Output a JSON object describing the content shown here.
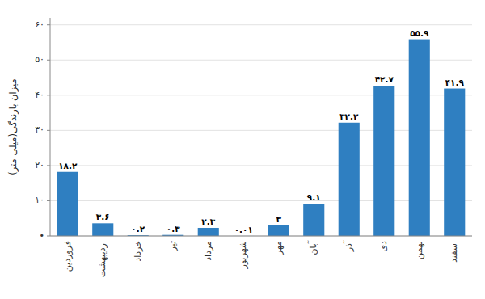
{
  "chart_data": {
    "type": "bar",
    "categories": [
      "فروردین",
      "اردیبهشت",
      "خرداد",
      "تیر",
      "مرداد",
      "شهریور",
      "مهر",
      "آبان",
      "آذر",
      "دی",
      "بهمن",
      "اسفند"
    ],
    "values": [
      18.2,
      3.6,
      0.2,
      0.3,
      2.3,
      0.01,
      3.0,
      9.1,
      32.2,
      42.7,
      55.9,
      41.9
    ],
    "value_labels": [
      "۱۸.۲",
      "۳.۶",
      "۰.۲",
      "۰.۳",
      "۲.۳",
      "۰.۰۱",
      "۳",
      "۹.۱",
      "۳۲.۲",
      "۴۲.۷",
      "۵۵.۹",
      "۴۱.۹"
    ],
    "ylabel": "میزان بارندگی(میلی متر)",
    "ylim": [
      0,
      62
    ],
    "yticks": [
      {
        "value": 0,
        "label": "•"
      },
      {
        "value": 10,
        "label": "۱۰"
      },
      {
        "value": 20,
        "label": "۲۰"
      },
      {
        "value": 30,
        "label": "۳۰"
      },
      {
        "value": 40,
        "label": "۴۰"
      },
      {
        "value": 50,
        "label": "۵۰"
      },
      {
        "value": 60,
        "label": "۶۰"
      }
    ],
    "grid": true,
    "data_labels": true
  }
}
